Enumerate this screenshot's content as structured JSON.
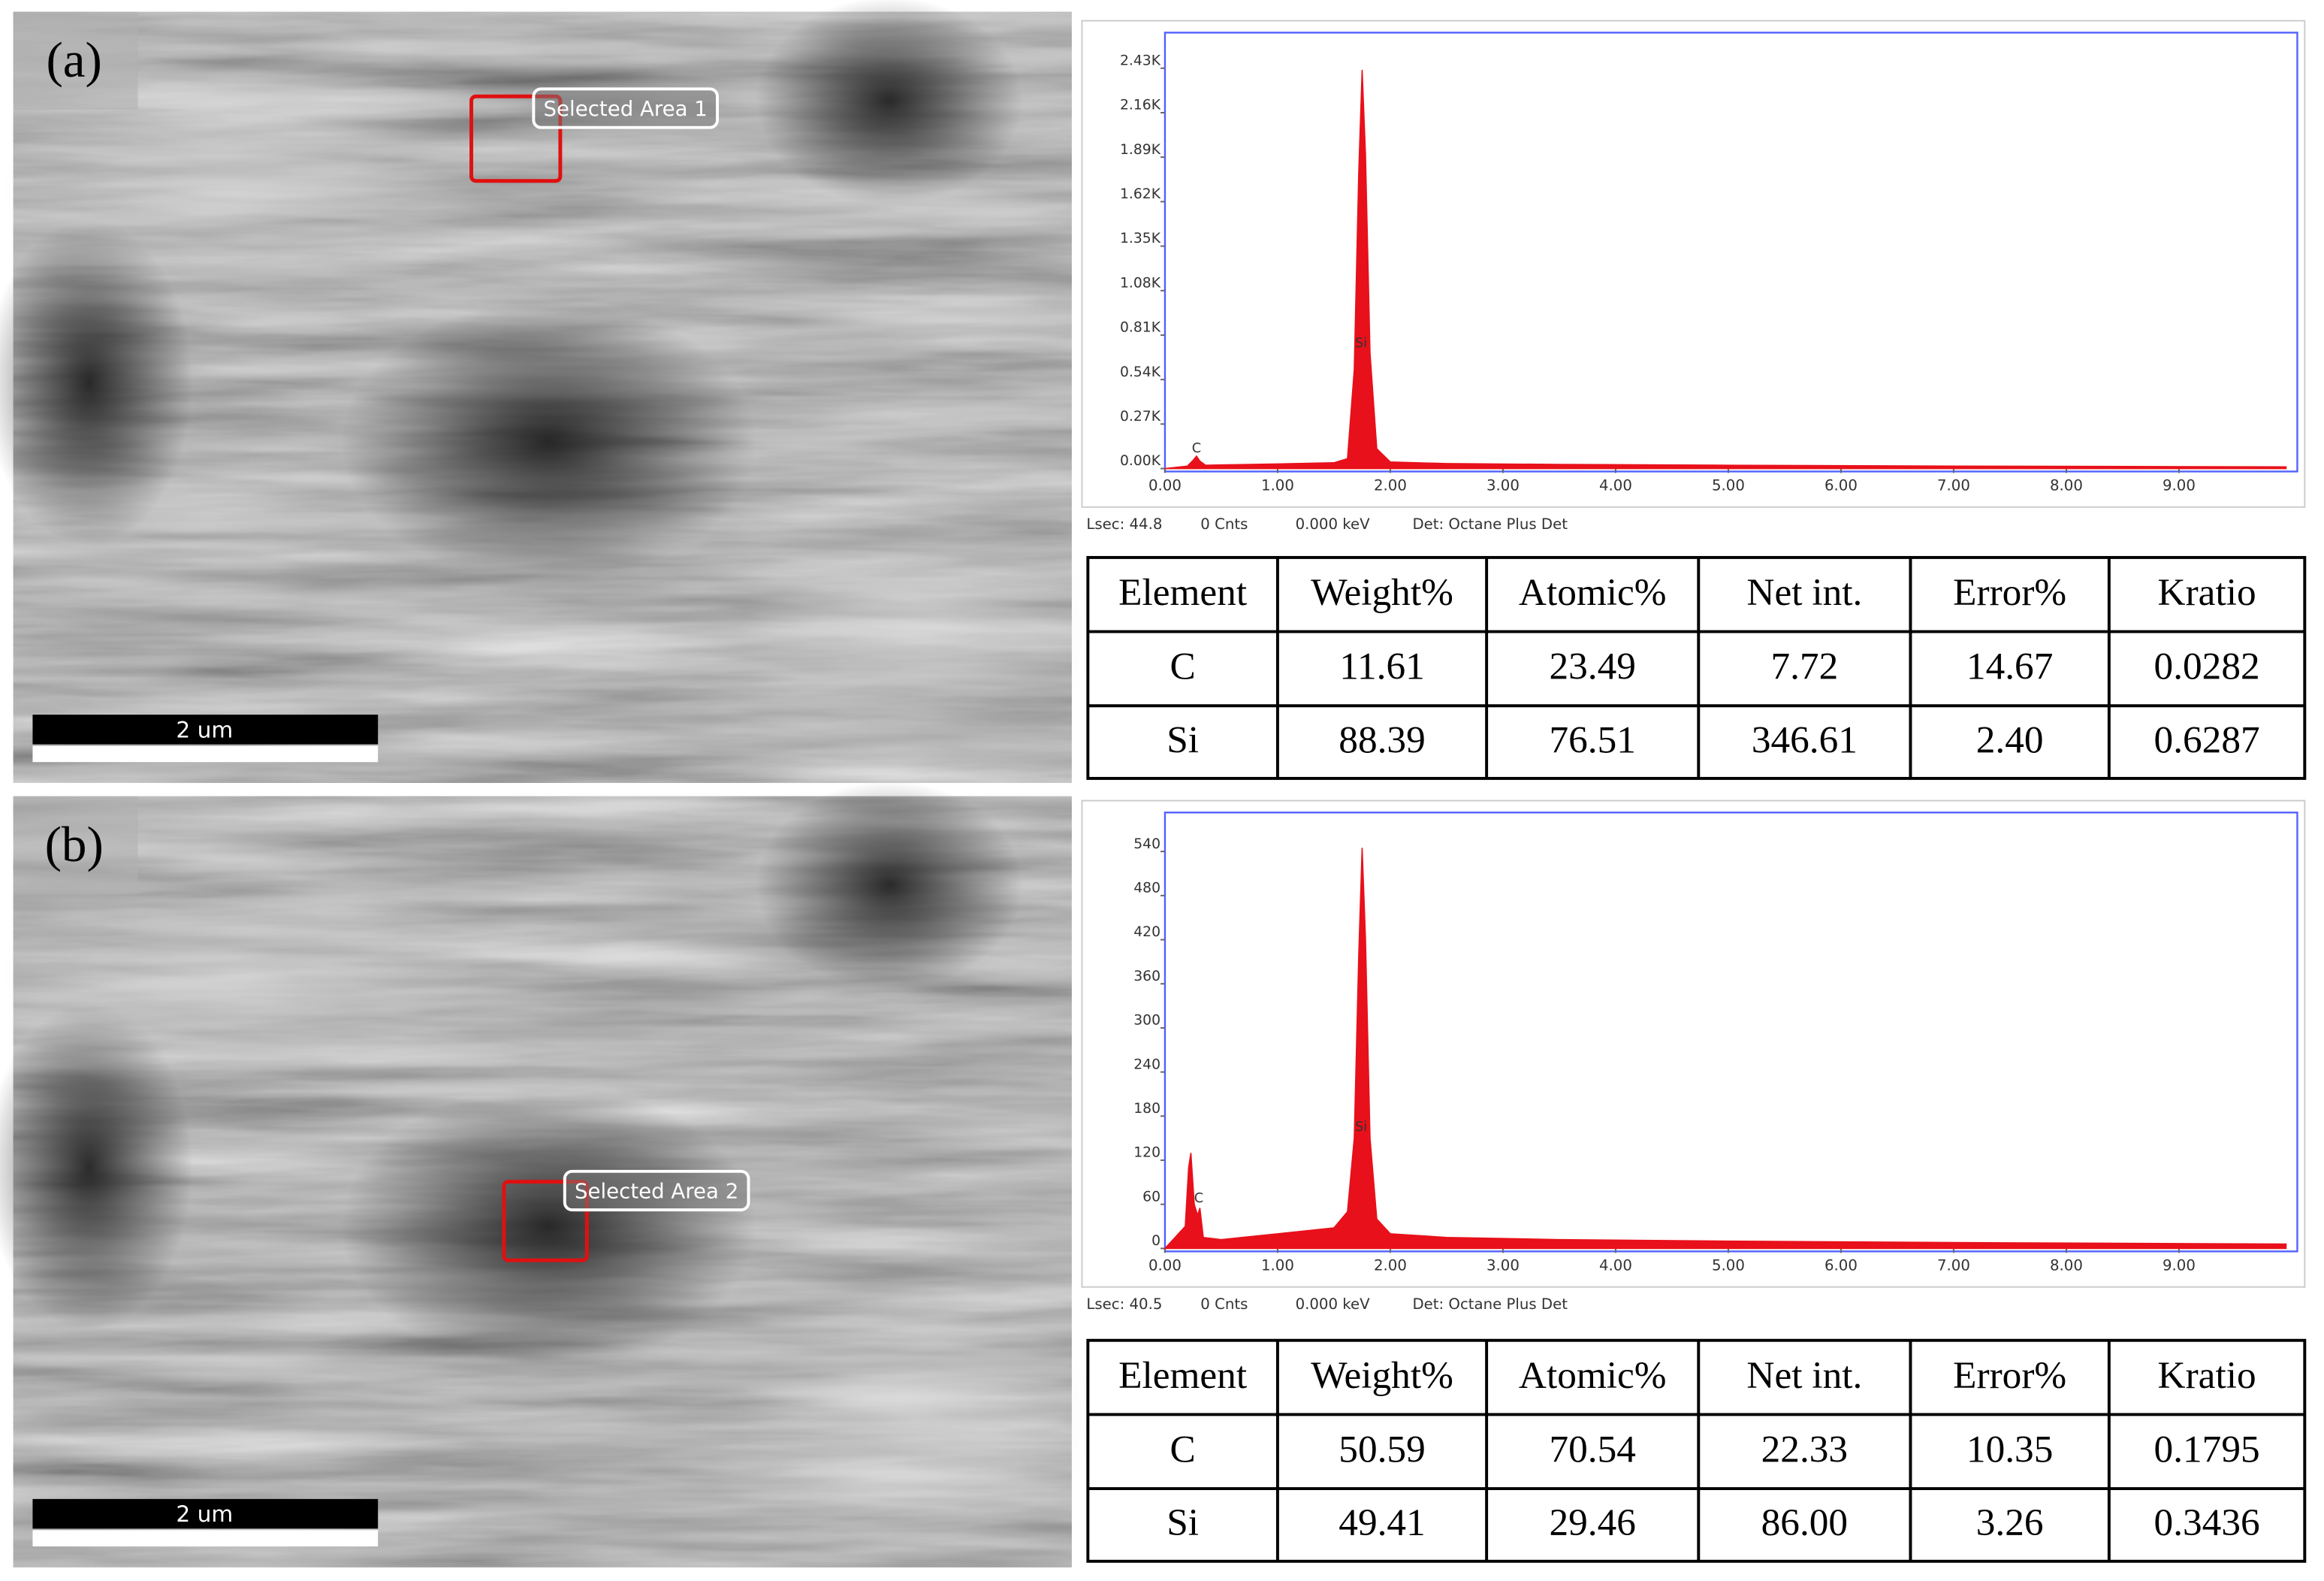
{
  "panels": [
    {
      "label": "(a)",
      "selected_area": "Selected Area 1",
      "scale_bar": "2 um",
      "info": [
        "Lsec: 44.8",
        "0 Cnts",
        "0.000 keV",
        "Det: Octane Plus Det"
      ],
      "table": {
        "header": [
          "Element",
          "Weight%",
          "Atomic%",
          "Net int.",
          "Error%",
          "Kratio"
        ],
        "rows": [
          [
            "C",
            "11.61",
            "23.49",
            "7.72",
            "14.67",
            "0.0282"
          ],
          [
            "Si",
            "88.39",
            "76.51",
            "346.61",
            "2.40",
            "0.6287"
          ]
        ]
      }
    },
    {
      "label": "(b)",
      "selected_area": "Selected Area 2",
      "scale_bar": "2 um",
      "info": [
        "Lsec: 40.5",
        "0 Cnts",
        "0.000 keV",
        "Det: Octane Plus Det"
      ],
      "table": {
        "header": [
          "Element",
          "Weight%",
          "Atomic%",
          "Net int.",
          "Error%",
          "Kratio"
        ],
        "rows": [
          [
            "C",
            "50.59",
            "70.54",
            "22.33",
            "10.35",
            "0.1795"
          ],
          [
            "Si",
            "49.41",
            "29.46",
            "86.00",
            "3.26",
            "0.3436"
          ]
        ]
      }
    }
  ],
  "chart_data": [
    {
      "type": "area",
      "color": "#e8101a",
      "x": [
        0,
        0.2,
        0.25,
        0.28,
        0.31,
        0.36,
        0.5,
        1.0,
        1.5,
        1.62,
        1.68,
        1.72,
        1.75,
        1.78,
        1.82,
        1.88,
        2.0,
        2.5,
        3.5,
        5,
        7,
        9.95
      ],
      "values": [
        0,
        15,
        50,
        75,
        45,
        20,
        22,
        28,
        35,
        60,
        600,
        1800,
        2420,
        1900,
        700,
        120,
        40,
        30,
        25,
        20,
        15,
        10
      ],
      "xlim": [
        0,
        10.05
      ],
      "ylim": [
        0,
        2646
      ],
      "xticks": [
        {
          "value": 0,
          "label": "0.00"
        },
        {
          "value": 1,
          "label": "1.00"
        },
        {
          "value": 2,
          "label": "2.00"
        },
        {
          "value": 3,
          "label": "3.00"
        },
        {
          "value": 4,
          "label": "4.00"
        },
        {
          "value": 5,
          "label": "5.00"
        },
        {
          "value": 6,
          "label": "6.00"
        },
        {
          "value": 7,
          "label": "7.00"
        },
        {
          "value": 8,
          "label": "8.00"
        },
        {
          "value": 9,
          "label": "9.00"
        }
      ],
      "yticks": [
        {
          "value": 0,
          "label": "0.00K"
        },
        {
          "value": 270,
          "label": "0.27K"
        },
        {
          "value": 540,
          "label": "0.54K"
        },
        {
          "value": 810,
          "label": "0.81K"
        },
        {
          "value": 1080,
          "label": "1.08K"
        },
        {
          "value": 1350,
          "label": "1.35K"
        },
        {
          "value": 1620,
          "label": "1.62K"
        },
        {
          "value": 1890,
          "label": "1.89K"
        },
        {
          "value": 2160,
          "label": "2.16K"
        },
        {
          "value": 2430,
          "label": "2.43K"
        }
      ],
      "annotations": [
        {
          "text": "C",
          "x": 0.28,
          "y": 120
        },
        {
          "text": "Si",
          "x": 1.74,
          "y": 760
        }
      ]
    },
    {
      "type": "area",
      "color": "#e8101a",
      "x": [
        0,
        0.18,
        0.21,
        0.23,
        0.26,
        0.29,
        0.31,
        0.34,
        0.5,
        1.0,
        1.5,
        1.62,
        1.68,
        1.72,
        1.75,
        1.78,
        1.82,
        1.88,
        2.0,
        2.5,
        3.5,
        5,
        7,
        9.95
      ],
      "values": [
        0,
        30,
        110,
        130,
        60,
        45,
        55,
        15,
        12,
        20,
        28,
        50,
        150,
        400,
        545,
        420,
        150,
        40,
        20,
        15,
        12,
        10,
        8,
        6
      ],
      "xlim": [
        0,
        10.05
      ],
      "ylim": [
        0,
        593
      ],
      "xticks": [
        {
          "value": 0,
          "label": "0.00"
        },
        {
          "value": 1,
          "label": "1.00"
        },
        {
          "value": 2,
          "label": "2.00"
        },
        {
          "value": 3,
          "label": "3.00"
        },
        {
          "value": 4,
          "label": "4.00"
        },
        {
          "value": 5,
          "label": "5.00"
        },
        {
          "value": 6,
          "label": "6.00"
        },
        {
          "value": 7,
          "label": "7.00"
        },
        {
          "value": 8,
          "label": "8.00"
        },
        {
          "value": 9,
          "label": "9.00"
        }
      ],
      "yticks": [
        0,
        60,
        120,
        180,
        240,
        300,
        360,
        420,
        480,
        540
      ],
      "annotations": [
        {
          "text": "C",
          "x": 0.3,
          "y": 68
        },
        {
          "text": "Si",
          "x": 1.74,
          "y": 165
        }
      ]
    }
  ]
}
